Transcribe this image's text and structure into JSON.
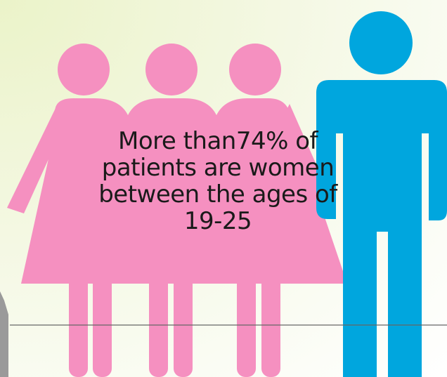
{
  "caption": {
    "line1": "More than74% of",
    "line2": "patients are women",
    "line3": "between the ages of",
    "line4": "19-25"
  },
  "colors": {
    "women": "#f590c0",
    "man": "#00a6de",
    "background": "#f4f8e3",
    "line": "#666666",
    "shape_left": "#9a9a9a"
  },
  "icons": [
    "woman-figure-icon",
    "woman-figure-icon",
    "woman-figure-icon",
    "man-figure-icon"
  ]
}
